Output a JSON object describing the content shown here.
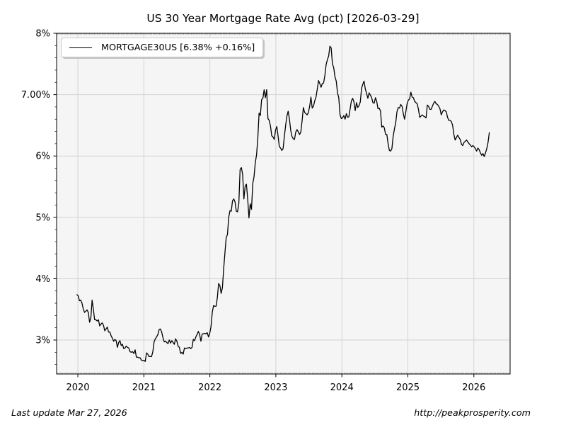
{
  "header": {
    "title": "US 30 Year Mortgage Rate Avg (pct) [2026-03-29]"
  },
  "legend": {
    "series_label": "MORTGAGE30US [6.38% +0.16%]"
  },
  "footer": {
    "last_update": "Last update Mar 27, 2026",
    "source_url": "http://peakprosperity.com"
  },
  "chart_data": {
    "type": "line",
    "title": "US 30 Year Mortgage Rate Avg (pct) [2026-03-29]",
    "grid": true,
    "legend_position": "upper-left",
    "plot_bg": "#f5f5f5",
    "grid_color": "#d4d4d4",
    "spine_color": "#000000",
    "xlim_years": [
      2019.678,
      2026.549
    ],
    "ylim_pct": [
      2.446,
      8.0
    ],
    "x_ticks": [
      {
        "year": 2020,
        "label": "2020"
      },
      {
        "year": 2021,
        "label": "2021"
      },
      {
        "year": 2022,
        "label": "2022"
      },
      {
        "year": 2023,
        "label": "2023"
      },
      {
        "year": 2024,
        "label": "2024"
      },
      {
        "year": 2025,
        "label": "2025"
      },
      {
        "year": 2026,
        "label": "2026"
      }
    ],
    "y_ticks": [
      {
        "value": 8,
        "label": "8%"
      },
      {
        "value": 7,
        "label": "7.00%"
      },
      {
        "value": 6,
        "label": "6%"
      },
      {
        "value": 5,
        "label": "5%"
      },
      {
        "value": 4,
        "label": "4%"
      },
      {
        "value": 3,
        "label": "3%"
      }
    ],
    "series": [
      {
        "name": "MORTGAGE30US",
        "color": "#000000",
        "current_value_pct": 6.38,
        "last_change_pct": 0.16,
        "start_decimal_year": 2019.986,
        "interval_days": 7,
        "years": [
          {
            "year": 2019,
            "values": [
              3.74
            ]
          },
          {
            "year": 2020,
            "values": [
              3.72,
              3.64,
              3.65,
              3.6,
              3.51,
              3.45,
              3.47,
              3.49,
              3.45,
              3.29,
              3.36,
              3.65,
              3.5,
              3.33,
              3.33,
              3.31,
              3.33,
              3.23,
              3.26,
              3.28,
              3.24,
              3.15,
              3.18,
              3.21,
              3.13,
              3.13,
              3.07,
              3.03,
              2.98,
              3.01,
              2.99,
              2.88,
              2.96,
              2.99,
              2.91,
              2.93,
              2.86,
              2.87,
              2.9,
              2.88,
              2.87,
              2.81,
              2.8,
              2.81,
              2.78,
              2.84,
              2.72,
              2.72,
              2.71,
              2.71,
              2.67,
              2.66,
              2.67
            ]
          },
          {
            "year": 2021,
            "values": [
              2.65,
              2.79,
              2.77,
              2.73,
              2.73,
              2.73,
              2.81,
              2.97,
              3.02,
              3.05,
              3.09,
              3.17,
              3.18,
              3.13,
              3.04,
              2.97,
              2.98,
              2.96,
              2.94,
              3.0,
              2.95,
              2.99,
              2.96,
              2.93,
              3.02,
              2.98,
              2.9,
              2.88,
              2.78,
              2.8,
              2.77,
              2.87,
              2.86,
              2.87,
              2.87,
              2.88,
              2.86,
              2.88,
              3.01,
              2.99,
              3.05,
              3.09,
              3.14,
              3.09,
              2.98,
              3.1,
              3.1,
              3.11,
              3.1,
              3.12,
              3.05,
              3.11
            ]
          },
          {
            "year": 2022,
            "values": [
              3.22,
              3.45,
              3.56,
              3.55,
              3.55,
              3.69,
              3.92,
              3.89,
              3.76,
              3.85,
              4.16,
              4.42,
              4.67,
              4.72,
              5.0,
              5.11,
              5.1,
              5.27,
              5.3,
              5.25,
              5.1,
              5.09,
              5.23,
              5.78,
              5.81,
              5.7,
              5.3,
              5.51,
              5.54,
              5.3,
              4.99,
              5.22,
              5.13,
              5.55,
              5.66,
              5.89,
              6.02,
              6.29,
              6.7,
              6.66,
              6.92,
              6.94,
              7.08,
              6.95,
              7.08,
              6.61,
              6.58,
              6.49,
              6.33,
              6.31,
              6.27,
              6.42
            ]
          },
          {
            "year": 2023,
            "values": [
              6.48,
              6.33,
              6.15,
              6.13,
              6.09,
              6.12,
              6.32,
              6.5,
              6.65,
              6.73,
              6.6,
              6.42,
              6.32,
              6.28,
              6.27,
              6.39,
              6.43,
              6.39,
              6.35,
              6.39,
              6.57,
              6.79,
              6.71,
              6.69,
              6.67,
              6.71,
              6.81,
              6.96,
              6.78,
              6.81,
              6.9,
              6.96,
              7.09,
              7.23,
              7.18,
              7.12,
              7.18,
              7.19,
              7.31,
              7.49,
              7.57,
              7.63,
              7.79,
              7.76,
              7.5,
              7.44,
              7.29,
              7.22,
              7.03,
              6.95,
              6.67,
              6.61
            ]
          },
          {
            "year": 2024,
            "values": [
              6.62,
              6.66,
              6.6,
              6.69,
              6.63,
              6.64,
              6.77,
              6.9,
              6.94,
              6.88,
              6.74,
              6.87,
              6.79,
              6.82,
              6.88,
              7.1,
              7.17,
              7.22,
              7.09,
              7.02,
              6.94,
              7.03,
              6.99,
              6.95,
              6.87,
              6.86,
              6.95,
              6.89,
              6.77,
              6.78,
              6.73,
              6.47,
              6.49,
              6.46,
              6.35,
              6.35,
              6.2,
              6.09,
              6.08,
              6.12,
              6.32,
              6.44,
              6.54,
              6.72,
              6.79,
              6.78,
              6.84,
              6.81,
              6.69,
              6.6,
              6.72,
              6.85
            ]
          },
          {
            "year": 2025,
            "values": [
              6.91,
              6.93,
              7.04,
              6.96,
              6.95,
              6.89,
              6.87,
              6.85,
              6.76,
              6.63,
              6.65,
              6.67,
              6.65,
              6.64,
              6.62,
              6.83,
              6.81,
              6.76,
              6.76,
              6.81,
              6.86,
              6.89,
              6.85,
              6.84,
              6.81,
              6.77,
              6.67,
              6.72,
              6.75,
              6.74,
              6.72,
              6.63,
              6.58,
              6.58,
              6.56,
              6.5,
              6.35,
              6.26,
              6.3,
              6.34,
              6.3,
              6.27,
              6.19,
              6.17,
              6.22,
              6.24,
              6.26,
              6.23,
              6.2,
              6.18,
              6.15,
              6.17
            ]
          },
          {
            "year": 2026,
            "values": [
              6.15,
              6.12,
              6.08,
              6.13,
              6.1,
              6.05,
              6.01,
              6.04,
              5.99,
              6.05,
              6.12,
              6.22,
              6.38
            ]
          }
        ]
      }
    ]
  }
}
